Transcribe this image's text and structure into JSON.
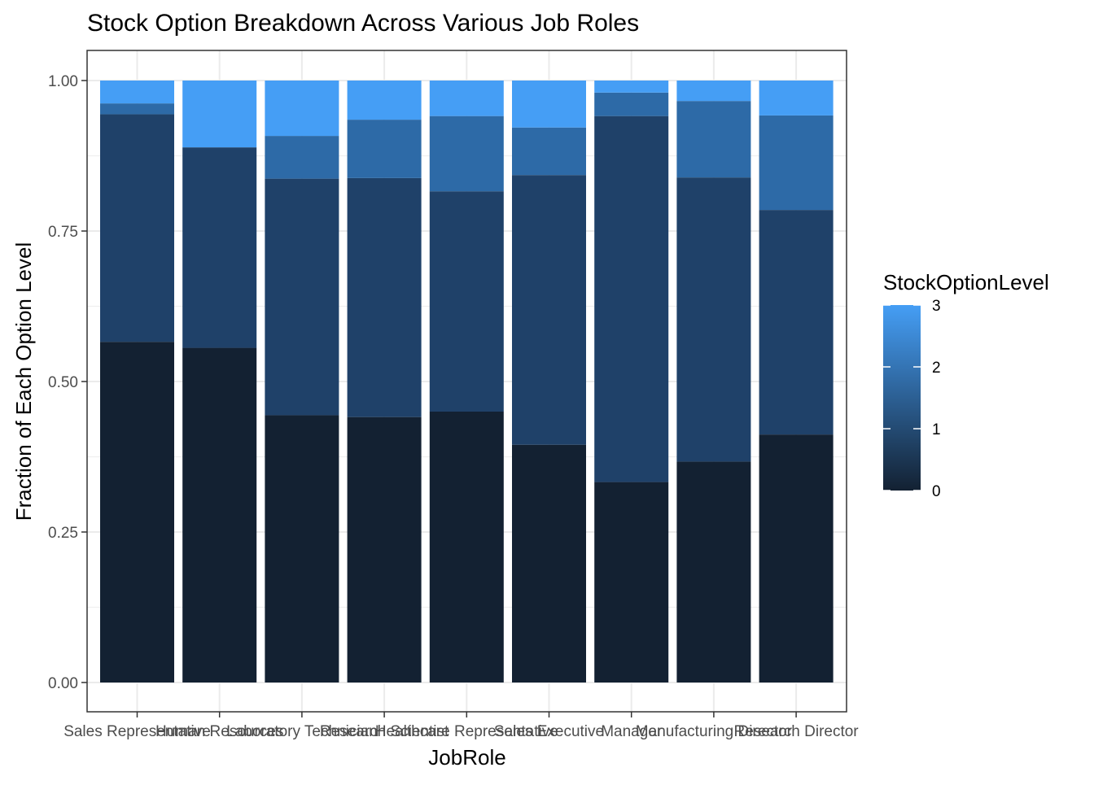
{
  "chart_data": {
    "type": "bar",
    "stacked": true,
    "title": "Stock Option Breakdown Across Various Job Roles",
    "xlabel": "JobRole",
    "ylabel": "Fraction of Each Option Level",
    "ylim": [
      0,
      1
    ],
    "yticks": [
      "0.00",
      "0.25",
      "0.50",
      "0.75",
      "1.00"
    ],
    "ytick_values": [
      0,
      0.25,
      0.5,
      0.75,
      1.0
    ],
    "grid": true,
    "categories": [
      "Sales Representative",
      "Human Resources",
      "Laboratory Technician",
      "Research Scientist",
      "Healthcare Representative",
      "Sales Executive",
      "Manager",
      "Manufacturing Director",
      "Research Director"
    ],
    "series": [
      {
        "level": 0,
        "color": "#132132",
        "values": [
          0.566,
          0.556,
          0.444,
          0.441,
          0.45,
          0.395,
          0.333,
          0.367,
          0.412
        ]
      },
      {
        "level": 1,
        "color": "#1f4169",
        "values": [
          0.378,
          0.333,
          0.393,
          0.397,
          0.366,
          0.448,
          0.608,
          0.472,
          0.373
        ]
      },
      {
        "level": 2,
        "color": "#2d6aa7",
        "values": [
          0.018,
          0.0,
          0.071,
          0.097,
          0.125,
          0.079,
          0.039,
          0.127,
          0.157
        ]
      },
      {
        "level": 3,
        "color": "#459ef5",
        "values": [
          0.038,
          0.111,
          0.092,
          0.065,
          0.059,
          0.078,
          0.02,
          0.034,
          0.058
        ]
      }
    ],
    "legend": {
      "title": "StockOptionLevel",
      "position": "right",
      "type": "colorbar",
      "range": [
        0,
        3
      ],
      "labels": [
        "0",
        "1",
        "2",
        "3"
      ],
      "gradient_low": "#132132",
      "gradient_high": "#459ef5"
    }
  }
}
